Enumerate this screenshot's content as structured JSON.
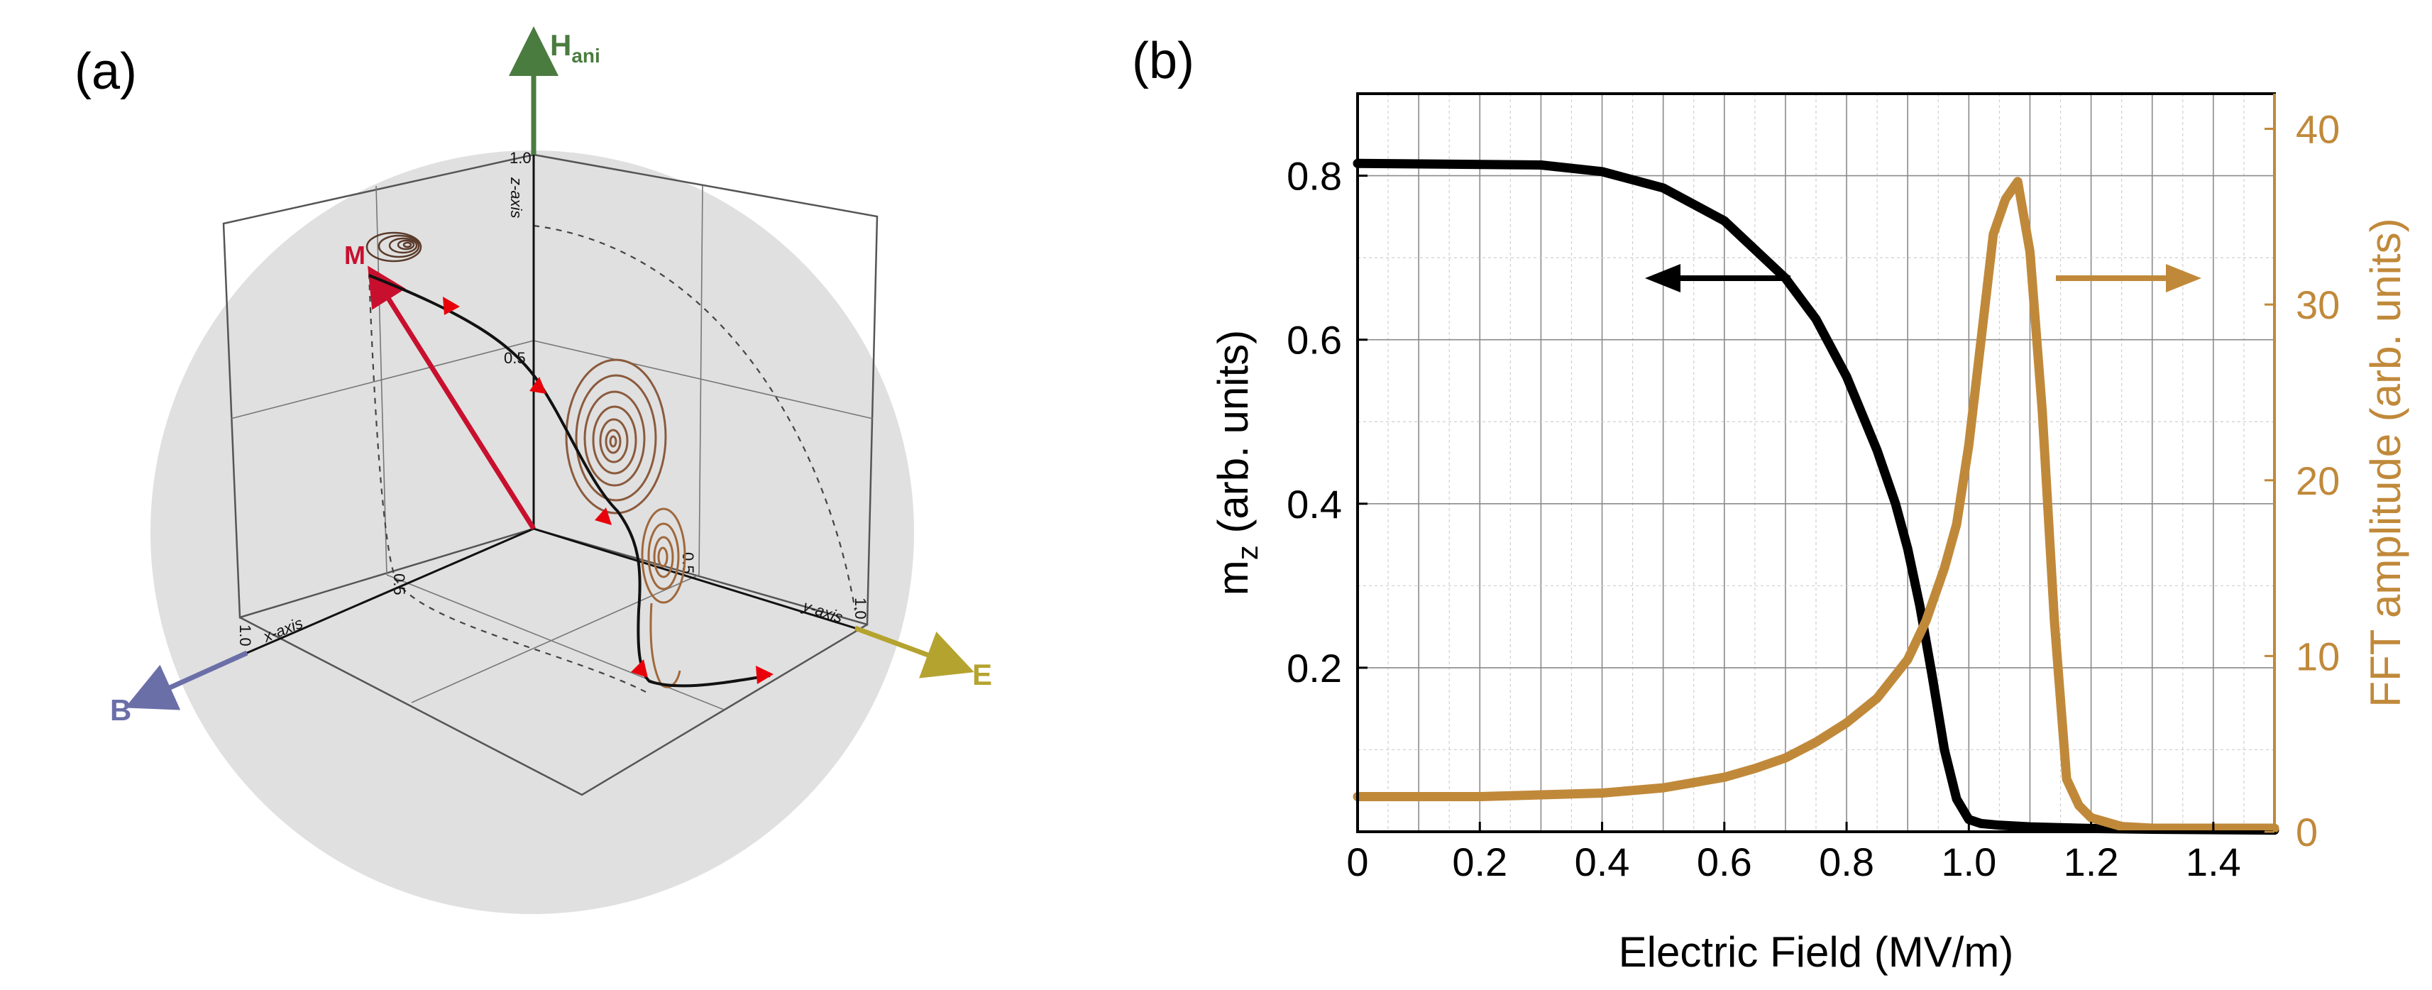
{
  "panel_a": {
    "label": "(a)",
    "axes": {
      "x_name": "x-axis",
      "y_name": "y-axis",
      "z_name": "z-axis",
      "x_tick_mid": "0.5",
      "x_tick_end": "1.0",
      "y_tick_mid": "0.5",
      "y_tick_end": "1.0",
      "z_tick_mid": "0.5",
      "z_tick_end": "1.0"
    },
    "vectors": {
      "h_ani": "H",
      "h_ani_sub": "ani",
      "b": "B",
      "e": "E",
      "m": "M"
    },
    "colors": {
      "sphere": "#e0e0e0",
      "h_ani": "#4a7c3f",
      "b": "#6b6fa8",
      "e": "#b5a32f",
      "m": "#c8102e",
      "contour": "#8b5a3c",
      "arrowhead": "#e8000b"
    }
  },
  "panel_b": {
    "label": "(b)"
  },
  "chart_data": {
    "type": "line",
    "xlabel": "Electric Field (MV/m)",
    "ylabel": "m",
    "ylabel_sub": "z",
    "ylabel_tail": " (arb. units)",
    "y2label": "FFT amplitude (arb. units)",
    "xlim": [
      0,
      1.5
    ],
    "ylim": [
      0,
      0.9
    ],
    "y2lim": [
      0,
      42
    ],
    "xticks": [
      "0",
      "0.2",
      "0.4",
      "0.6",
      "0.8",
      "1.0",
      "1.2",
      "1.4"
    ],
    "yticks": [
      "0.2",
      "0.4",
      "0.6",
      "0.8"
    ],
    "y2ticks": [
      "0",
      "10",
      "20",
      "30",
      "40"
    ],
    "grid": true,
    "colors": {
      "mz": "#000000",
      "fft": "#c0893a"
    },
    "series": [
      {
        "name": "m_z",
        "axis": "left",
        "x": [
          0,
          0.3,
          0.4,
          0.5,
          0.6,
          0.7,
          0.75,
          0.8,
          0.85,
          0.88,
          0.9,
          0.92,
          0.94,
          0.96,
          0.98,
          1.0,
          1.02,
          1.05,
          1.1,
          1.2,
          1.3,
          1.5
        ],
        "y": [
          0.815,
          0.813,
          0.805,
          0.785,
          0.745,
          0.675,
          0.625,
          0.555,
          0.465,
          0.4,
          0.345,
          0.275,
          0.19,
          0.1,
          0.04,
          0.015,
          0.01,
          0.008,
          0.006,
          0.004,
          0.003,
          0.002
        ]
      },
      {
        "name": "FFT amplitude",
        "axis": "right",
        "x": [
          0,
          0.2,
          0.3,
          0.4,
          0.5,
          0.55,
          0.6,
          0.65,
          0.7,
          0.75,
          0.8,
          0.85,
          0.9,
          0.93,
          0.96,
          0.98,
          1.0,
          1.02,
          1.04,
          1.06,
          1.08,
          1.1,
          1.12,
          1.14,
          1.16,
          1.18,
          1.2,
          1.25,
          1.3,
          1.5
        ],
        "y": [
          2,
          2,
          2.1,
          2.2,
          2.5,
          2.8,
          3.1,
          3.6,
          4.2,
          5.1,
          6.2,
          7.6,
          9.8,
          12,
          15,
          17.5,
          22,
          28,
          34,
          36,
          37,
          33,
          24,
          12,
          3,
          1.5,
          0.8,
          0.3,
          0.2,
          0.2
        ]
      }
    ],
    "annotations": [
      {
        "text": "arrow pointing left toward m_z axis",
        "color": "#000000"
      },
      {
        "text": "arrow pointing right toward FFT axis",
        "color": "#c0893a"
      }
    ]
  }
}
